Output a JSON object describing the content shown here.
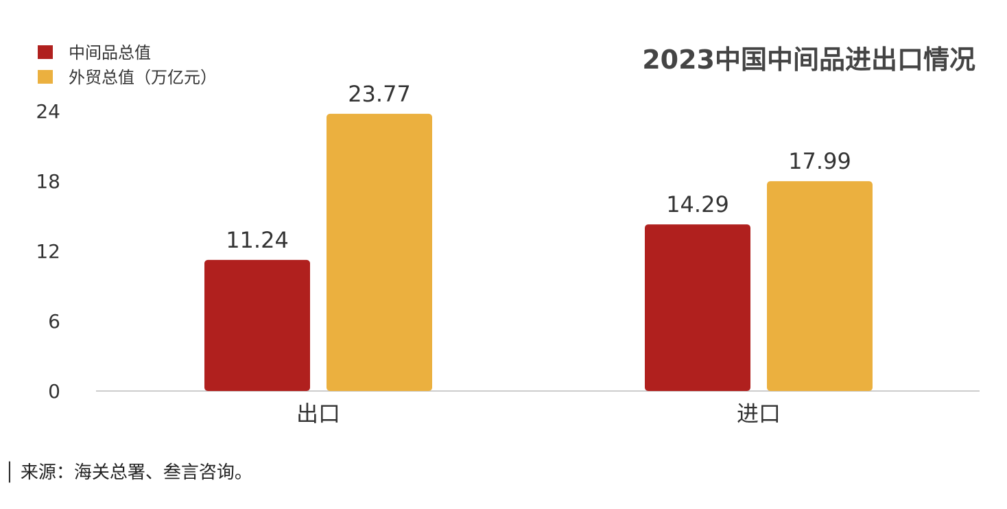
{
  "chart_data": {
    "type": "bar",
    "title": "2023中国中间品进出口情况",
    "categories": [
      "出口",
      "进口"
    ],
    "series": [
      {
        "name": "中间品总值",
        "values": [
          11.24,
          14.29
        ],
        "color": "#B0201E"
      },
      {
        "name": "外贸总值（万亿元）",
        "values": [
          23.77,
          17.99
        ],
        "color": "#EBB03F"
      }
    ],
    "data_labels": [
      [
        "11.24",
        "14.29"
      ],
      [
        "23.77",
        "17.99"
      ]
    ],
    "yticks": [
      0,
      6,
      12,
      18,
      24
    ],
    "ylim": [
      0,
      24
    ],
    "grid": false,
    "legend_position": "top-left"
  },
  "source_text": "│ 来源：海关总署、叁言咨询。"
}
